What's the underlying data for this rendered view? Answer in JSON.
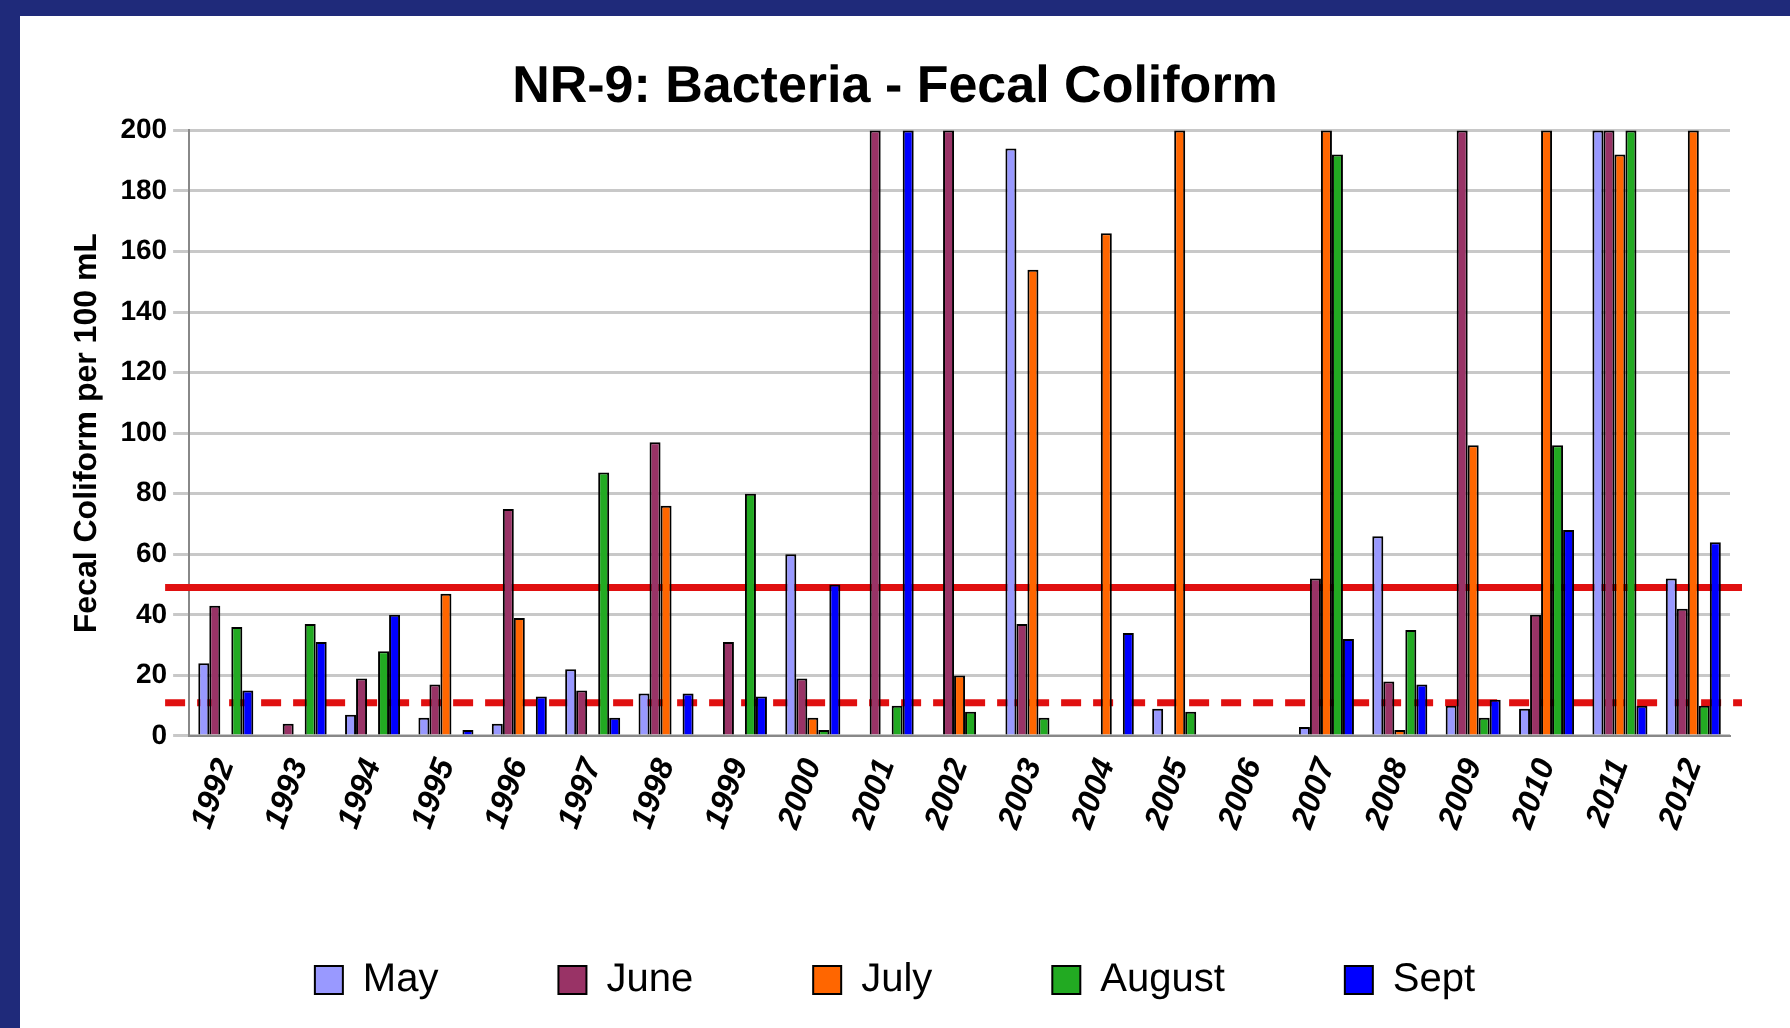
{
  "chart_data": {
    "type": "bar",
    "title": "NR-9: Bacteria - Fecal Coliform",
    "ylabel": "Fecal Coliform per 100 mL",
    "categories": [
      "1992",
      "1993",
      "1994",
      "1995",
      "1996",
      "1997",
      "1998",
      "1999",
      "2000",
      "2001",
      "2002",
      "2003",
      "2004",
      "2005",
      "2006",
      "2007",
      "2008",
      "2009",
      "2010",
      "2011",
      "2012"
    ],
    "series": [
      {
        "name": "May",
        "color": "#9999ff",
        "values": [
          24,
          null,
          7,
          6,
          4,
          22,
          14,
          null,
          60,
          null,
          null,
          194,
          null,
          9,
          null,
          3,
          66,
          10,
          9,
          200,
          52
        ]
      },
      {
        "name": "June",
        "color": "#993366",
        "values": [
          43,
          4,
          19,
          17,
          75,
          15,
          97,
          31,
          19,
          200,
          200,
          37,
          null,
          null,
          null,
          52,
          18,
          200,
          40,
          200,
          42
        ]
      },
      {
        "name": "July",
        "color": "#ff6600",
        "values": [
          null,
          null,
          null,
          47,
          39,
          null,
          76,
          null,
          6,
          null,
          20,
          154,
          166,
          200,
          null,
          200,
          2,
          96,
          200,
          192,
          200
        ]
      },
      {
        "name": "August",
        "color": "#22aa22",
        "values": [
          36,
          37,
          28,
          null,
          null,
          87,
          null,
          80,
          2,
          10,
          8,
          6,
          null,
          8,
          null,
          192,
          35,
          6,
          96,
          200,
          10
        ]
      },
      {
        "name": "Sept",
        "color": "#0000ff",
        "values": [
          15,
          31,
          40,
          2,
          13,
          6,
          14,
          13,
          50,
          200,
          null,
          null,
          34,
          null,
          null,
          32,
          17,
          12,
          68,
          10,
          64
        ]
      }
    ],
    "ylim": [
      0,
      200
    ],
    "yticks": [
      0,
      20,
      40,
      60,
      80,
      100,
      120,
      140,
      160,
      180,
      200
    ],
    "grid": "y",
    "legend": "bottom",
    "ref_lines": [
      {
        "axis": "y",
        "value": 49,
        "color": "#e01010",
        "line_style": "solid"
      },
      {
        "axis": "y",
        "value": 11,
        "color": "#e01010",
        "line_style": "dashed"
      }
    ]
  }
}
